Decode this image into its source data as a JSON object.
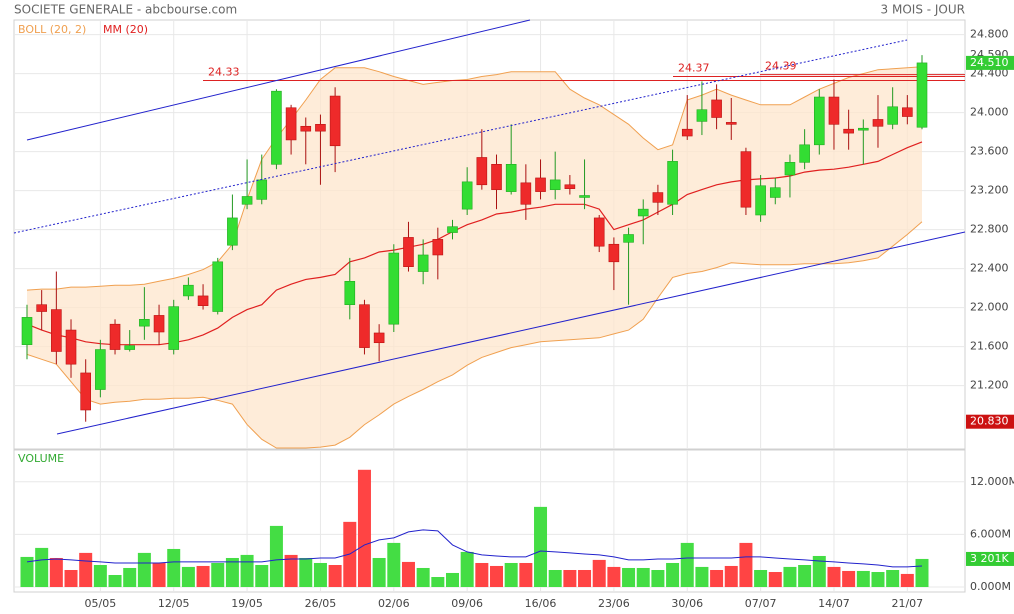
{
  "chart_data": [
    {
      "type": "candlestick",
      "title": "SOCIETE GENERALE - abcbourse.com",
      "subtitle": "3 MOIS - JOUR",
      "categories": [
        null,
        null,
        null,
        null,
        null,
        "05/05",
        null,
        null,
        null,
        null,
        "12/05",
        null,
        null,
        null,
        null,
        "19/05",
        null,
        null,
        null,
        null,
        "26/05",
        null,
        null,
        null,
        null,
        "02/06",
        null,
        null,
        null,
        null,
        "09/06",
        null,
        null,
        null,
        null,
        "16/06",
        null,
        null,
        null,
        null,
        "23/06",
        null,
        null,
        null,
        null,
        "30/06",
        null,
        null,
        null,
        null,
        "07/07",
        null,
        null,
        null,
        null,
        "14/07",
        null,
        null,
        null,
        null,
        "21/07",
        null
      ],
      "open": [
        21.62,
        22.03,
        21.98,
        21.77,
        21.33,
        21.16,
        21.83,
        21.57,
        21.81,
        21.92,
        21.57,
        22.12,
        22.12,
        21.96,
        22.64,
        23.06,
        23.11,
        23.47,
        24.05,
        23.86,
        23.88,
        24.17,
        22.03,
        22.03,
        21.74,
        21.83,
        22.72,
        22.37,
        22.7,
        22.77,
        23.01,
        23.54,
        23.47,
        23.19,
        23.28,
        23.33,
        23.21,
        23.26,
        23.13,
        22.92,
        22.65,
        22.67,
        22.94,
        23.18,
        23.06,
        23.83,
        23.91,
        24.13,
        23.9,
        23.6,
        22.95,
        23.13,
        23.36,
        23.49,
        23.67,
        24.16,
        23.83,
        23.82,
        23.93,
        23.88,
        24.05,
        23.85
      ],
      "high": [
        22.03,
        22.18,
        22.37,
        21.88,
        21.47,
        21.67,
        21.88,
        21.77,
        22.21,
        22.03,
        22.08,
        22.31,
        22.24,
        22.51,
        23.16,
        23.52,
        23.57,
        24.24,
        24.08,
        23.95,
        23.98,
        24.26,
        22.51,
        22.08,
        21.83,
        22.65,
        22.88,
        22.7,
        22.82,
        22.9,
        23.44,
        23.83,
        23.57,
        23.88,
        23.47,
        23.52,
        23.6,
        23.36,
        23.52,
        22.95,
        22.72,
        22.82,
        23.11,
        23.26,
        23.62,
        24.18,
        24.32,
        24.29,
        24.15,
        23.64,
        23.36,
        23.33,
        23.57,
        23.83,
        24.24,
        24.34,
        24.03,
        23.93,
        24.18,
        24.26,
        24.18,
        24.59
      ],
      "low": [
        21.47,
        21.77,
        21.42,
        21.28,
        20.83,
        21.08,
        21.52,
        21.55,
        21.67,
        21.62,
        21.52,
        22.08,
        21.98,
        21.93,
        22.59,
        23.01,
        23.06,
        23.42,
        23.57,
        23.47,
        23.26,
        23.39,
        21.88,
        21.52,
        21.45,
        21.75,
        22.37,
        22.24,
        22.29,
        22.7,
        22.95,
        23.21,
        23.01,
        23.16,
        22.9,
        23.11,
        23.11,
        23.16,
        23.01,
        22.57,
        22.18,
        22.03,
        22.65,
        22.95,
        22.95,
        23.72,
        23.77,
        23.83,
        23.72,
        22.95,
        22.88,
        23.06,
        23.13,
        23.42,
        23.57,
        23.62,
        23.62,
        23.47,
        23.64,
        23.83,
        23.88,
        23.83
      ],
      "close": [
        21.9,
        21.96,
        21.55,
        21.42,
        20.95,
        21.57,
        21.57,
        21.61,
        21.88,
        21.75,
        22.01,
        22.23,
        22.02,
        22.47,
        22.92,
        23.14,
        23.31,
        24.22,
        23.72,
        23.81,
        23.81,
        23.66,
        22.27,
        21.59,
        21.64,
        22.56,
        22.42,
        22.54,
        22.54,
        22.83,
        23.29,
        23.26,
        23.21,
        23.47,
        23.06,
        23.19,
        23.31,
        23.22,
        23.15,
        22.63,
        22.47,
        22.75,
        23.01,
        23.08,
        23.5,
        23.76,
        24.03,
        23.95,
        23.88,
        23.03,
        23.25,
        23.23,
        23.49,
        23.67,
        24.16,
        23.88,
        23.79,
        23.84,
        23.86,
        24.06,
        23.96,
        24.51
      ],
      "up_color": "#33dd33",
      "down_color": "#ee2a2a",
      "overlays": [
        {
          "name": "BOLL (20, 2)",
          "color": "#f0a050",
          "upper": [
            22.18,
            22.19,
            22.19,
            22.21,
            22.21,
            22.22,
            22.23,
            22.23,
            22.24,
            22.27,
            22.3,
            22.34,
            22.39,
            22.47,
            22.65,
            23.11,
            23.52,
            23.74,
            23.93,
            24.13,
            24.34,
            24.46,
            24.46,
            24.46,
            24.42,
            24.37,
            24.33,
            24.29,
            24.31,
            24.33,
            24.34,
            24.37,
            24.39,
            24.42,
            24.42,
            24.42,
            24.42,
            24.24,
            24.15,
            24.08,
            23.98,
            23.88,
            23.74,
            23.62,
            23.67,
            24.13,
            24.18,
            24.24,
            24.18,
            24.13,
            24.08,
            24.08,
            24.08,
            24.16,
            24.24,
            24.3,
            24.36,
            24.4,
            24.44,
            24.45,
            24.46,
            24.47
          ],
          "lower": [
            21.52,
            21.47,
            21.42,
            21.24,
            21.06,
            21.01,
            21.03,
            21.04,
            21.06,
            21.06,
            21.07,
            21.07,
            21.08,
            21.05,
            21.01,
            20.8,
            20.65,
            20.56,
            20.56,
            20.56,
            20.57,
            20.59,
            20.67,
            20.8,
            20.9,
            21.01,
            21.09,
            21.16,
            21.24,
            21.31,
            21.41,
            21.49,
            21.54,
            21.59,
            21.62,
            21.65,
            21.66,
            21.67,
            21.68,
            21.69,
            21.73,
            21.77,
            21.88,
            22.1,
            22.31,
            22.35,
            22.37,
            22.41,
            22.46,
            22.45,
            22.44,
            22.44,
            22.44,
            22.45,
            22.45,
            22.45,
            22.46,
            22.48,
            22.51,
            22.63,
            22.75,
            22.88
          ]
        },
        {
          "name": "MM (20)",
          "color": "#e02020",
          "values": [
            21.83,
            21.77,
            21.72,
            21.69,
            21.65,
            21.63,
            21.62,
            21.62,
            21.62,
            21.62,
            21.64,
            21.67,
            21.72,
            21.79,
            21.9,
            21.98,
            22.03,
            22.18,
            22.24,
            22.29,
            22.31,
            22.34,
            22.47,
            22.51,
            22.57,
            22.59,
            22.62,
            22.65,
            22.7,
            22.78,
            22.85,
            22.9,
            22.96,
            22.98,
            23.01,
            23.03,
            23.06,
            23.06,
            23.06,
            23.01,
            22.8,
            22.85,
            22.9,
            22.98,
            23.06,
            23.16,
            23.21,
            23.26,
            23.29,
            23.31,
            23.32,
            23.33,
            23.35,
            23.39,
            23.41,
            23.42,
            23.44,
            23.47,
            23.5,
            23.57,
            23.64,
            23.7
          ]
        }
      ],
      "levels": [
        24.33,
        24.37,
        24.39
      ],
      "level_color": "#dd2222",
      "badges": [
        {
          "value": 24.59,
          "label": "24.590",
          "color": "#ffffff"
        },
        {
          "value": 24.51,
          "label": "24.510",
          "color": "#33cc33"
        },
        {
          "value": 20.83,
          "label": "20.830",
          "color": "#cc1111"
        }
      ],
      "ylim": [
        20.55,
        24.95
      ],
      "yticks": [
        {
          "value": 21.2,
          "label": "21.200"
        },
        {
          "value": 21.6,
          "label": "21.600"
        },
        {
          "value": 22.0,
          "label": "22.000"
        },
        {
          "value": 22.4,
          "label": "22.400"
        },
        {
          "value": 22.8,
          "label": "22.800"
        },
        {
          "value": 23.2,
          "label": "23.200"
        },
        {
          "value": 23.6,
          "label": "23.600"
        },
        {
          "value": 24.0,
          "label": "24.000"
        },
        {
          "value": 24.4,
          "label": "24.400"
        },
        {
          "value": 24.8,
          "label": "24.800"
        }
      ],
      "grid": true
    },
    {
      "type": "bar",
      "title": "VOLUME",
      "values": [
        3.43,
        4.46,
        3.31,
        1.94,
        3.89,
        2.51,
        1.37,
        2.17,
        3.89,
        2.74,
        4.34,
        2.29,
        2.4,
        2.74,
        3.31,
        3.66,
        2.51,
        6.97,
        3.66,
        3.31,
        2.74,
        2.51,
        7.43,
        13.37,
        3.31,
        5.03,
        2.86,
        2.17,
        1.14,
        1.6,
        4.0,
        2.74,
        2.4,
        2.74,
        2.74,
        9.14,
        1.94,
        1.94,
        1.94,
        3.09,
        2.29,
        2.17,
        2.17,
        1.94,
        2.74,
        5.03,
        2.29,
        1.94,
        2.4,
        5.03,
        1.94,
        1.71,
        2.29,
        2.51,
        3.54,
        2.29,
        1.83,
        1.83,
        1.71,
        1.94,
        1.49,
        3.201
      ],
      "up_color": "#44dd44",
      "down_color": "#ff4444",
      "ma": {
        "color": "#2222cc",
        "values": [
          2.86,
          3.09,
          3.2,
          3.09,
          2.97,
          2.86,
          2.74,
          2.74,
          2.74,
          2.74,
          2.86,
          2.86,
          2.86,
          2.86,
          2.86,
          2.86,
          2.86,
          3.09,
          3.2,
          3.2,
          3.31,
          3.31,
          3.77,
          4.8,
          5.37,
          5.6,
          6.29,
          6.51,
          6.4,
          4.8,
          4.0,
          3.66,
          3.54,
          3.43,
          3.43,
          4.11,
          4.0,
          3.89,
          3.77,
          3.66,
          3.43,
          3.09,
          3.09,
          3.2,
          3.2,
          3.31,
          3.31,
          3.31,
          3.31,
          3.43,
          3.43,
          3.31,
          3.2,
          3.09,
          2.97,
          2.86,
          2.74,
          2.63,
          2.51,
          2.29,
          2.29,
          2.4
        ]
      },
      "badge": {
        "value": 3.201,
        "label": "3 201K",
        "color": "#33cc33"
      },
      "ylim": [
        -0.57,
        15.4
      ],
      "yticks": [
        {
          "value": 0,
          "label": "0.000M"
        },
        {
          "value": 6,
          "label": "6.000M"
        },
        {
          "value": 12,
          "label": "12.000M"
        }
      ],
      "grid": true
    }
  ]
}
